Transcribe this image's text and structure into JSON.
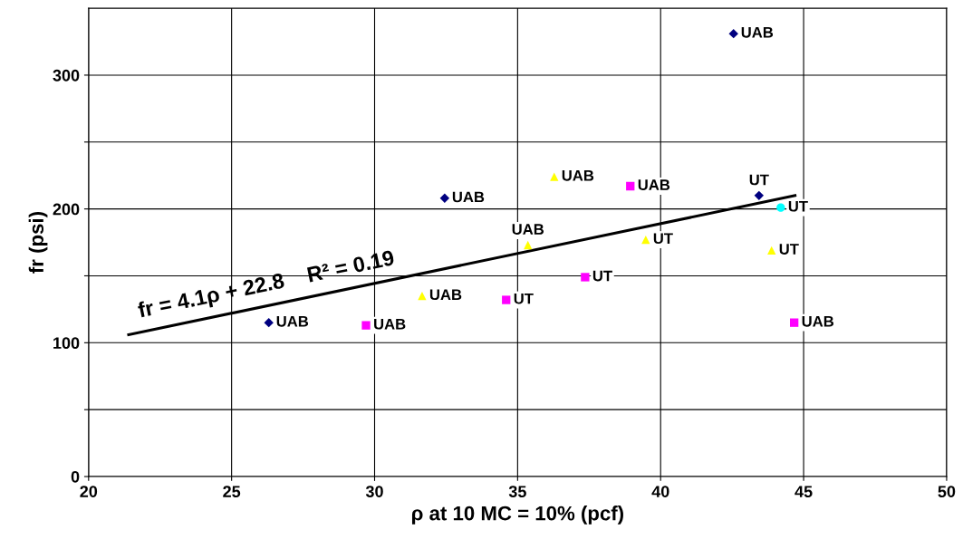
{
  "chart_data": {
    "type": "scatter",
    "xlabel": "ρ at 10 MC = 10% (pcf)",
    "ylabel": "fr (psi)",
    "xlim": [
      20,
      50
    ],
    "xticks": [
      20,
      25,
      30,
      35,
      40,
      45,
      50
    ],
    "ylim": [
      0,
      350
    ],
    "yticks": [
      0,
      {
        "value": 50,
        "label": null
      },
      100,
      {
        "value": 150,
        "label": null
      },
      200,
      {
        "value": 250,
        "label": null
      },
      300
    ],
    "grid": true,
    "series": [
      {
        "color": "#000080",
        "marker": "diamond",
        "x": [
          26.3,
          32.45,
          42.55,
          43.44
        ],
        "values": [
          115,
          208,
          331,
          210
        ]
      },
      {
        "color": "#ff00ff",
        "marker": "square",
        "x": [
          29.7,
          34.6,
          37.36,
          38.94,
          44.67
        ],
        "values": [
          113,
          132,
          149,
          217,
          115
        ]
      },
      {
        "color": "#ffff00",
        "marker": "triangle",
        "x": [
          31.66,
          35.36,
          36.28,
          39.48,
          43.88
        ],
        "values": [
          135,
          173,
          224,
          177,
          169
        ]
      },
      {
        "color": "#00ffff",
        "marker": "circle",
        "x": [
          44.2
        ],
        "values": [
          201
        ]
      },
      {
        "type": "line",
        "color": "#000000",
        "marker": "none",
        "x": [
          21.4,
          44.7
        ],
        "values": [
          106,
          210
        ]
      }
    ],
    "annotations": [
      {
        "text": "UAB",
        "x": 26.3,
        "y": 115
      },
      {
        "text": "UAB",
        "x": 32.45,
        "y": 208
      },
      {
        "text": "UAB",
        "x": 42.55,
        "y": 331
      },
      {
        "text": "UT",
        "x": 43.44,
        "y": 210
      },
      {
        "text": "UAB",
        "x": 29.7,
        "y": 113
      },
      {
        "text": "UT",
        "x": 34.6,
        "y": 132
      },
      {
        "text": "UT",
        "x": 37.36,
        "y": 149
      },
      {
        "text": "UAB",
        "x": 38.94,
        "y": 217
      },
      {
        "text": "UAB",
        "x": 44.67,
        "y": 115
      },
      {
        "text": "UAB",
        "x": 31.66,
        "y": 135
      },
      {
        "text": "UAB",
        "x": 35.36,
        "y": 173
      },
      {
        "text": "UAB",
        "x": 36.28,
        "y": 224
      },
      {
        "text": "UT",
        "x": 39.48,
        "y": 177
      },
      {
        "text": "UT",
        "x": 43.88,
        "y": 169
      },
      {
        "text": "UT",
        "x": 44.2,
        "y": 201
      },
      "fr = 4.1ρ + 22.8    R² = 0.19"
    ]
  }
}
